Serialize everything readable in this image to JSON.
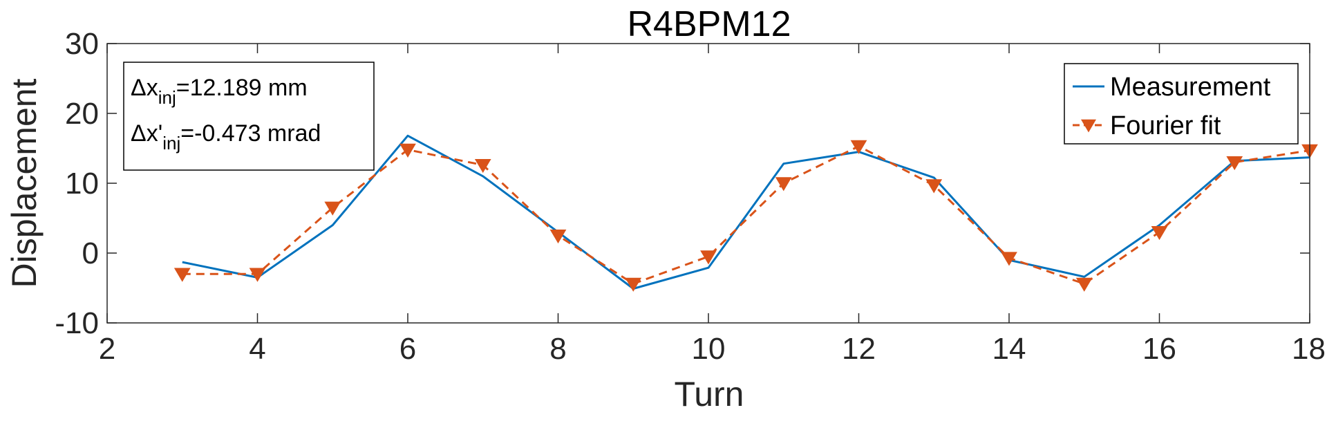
{
  "chart_data": {
    "type": "line",
    "title": "R4BPM12",
    "xlabel": "Turn",
    "ylabel": "Displacement",
    "xlim": [
      2,
      18
    ],
    "ylim": [
      -10,
      30
    ],
    "xticks": [
      "2",
      "4",
      "6",
      "8",
      "10",
      "12",
      "14",
      "16",
      "18"
    ],
    "yticks": [
      "-10",
      "0",
      "10",
      "20",
      "30"
    ],
    "grid": false,
    "legend_position": "top-right",
    "x": [
      3,
      4,
      5,
      6,
      7,
      8,
      9,
      10,
      11,
      12,
      13,
      14,
      15,
      16,
      17,
      18
    ],
    "series": [
      {
        "name": "Measurement",
        "color": "#0072bd",
        "style": "solid",
        "marker": "none",
        "values": [
          -1.3,
          -3.5,
          4.0,
          16.8,
          11.0,
          3.0,
          -5.1,
          -2.1,
          12.8,
          14.5,
          10.8,
          -1.0,
          -3.4,
          4.0,
          13.2,
          13.7
        ]
      },
      {
        "name": "Fourier fit",
        "color": "#d95319",
        "style": "dashed",
        "marker": "triangle-down",
        "values": [
          -3.0,
          -3.0,
          6.5,
          14.8,
          12.6,
          2.5,
          -4.4,
          -0.5,
          10.0,
          15.3,
          9.7,
          -0.7,
          -4.4,
          3.0,
          13.0,
          14.7
        ]
      }
    ],
    "annotation": {
      "line1_prefix": "Δx",
      "line1_sub": "inj",
      "line1_value": "=12.189 mm",
      "line2_prefix": "Δx'",
      "line2_sub": "inj",
      "line2_value": "=-0.473 mrad"
    }
  }
}
